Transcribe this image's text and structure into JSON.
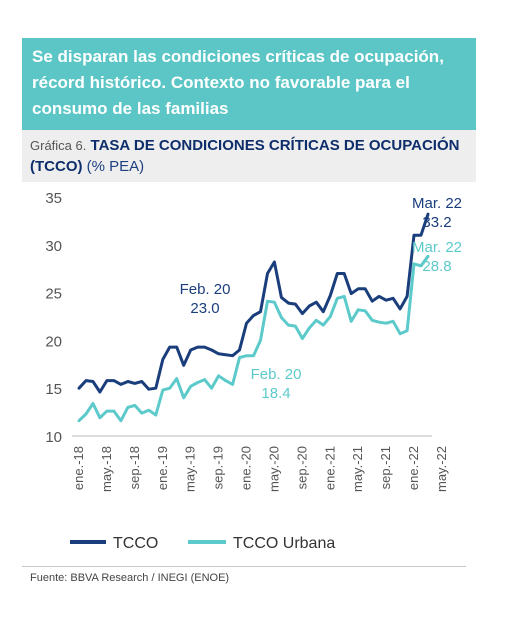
{
  "banner": {
    "title": "Se disparan las condiciones críticas de ocupación, récord histórico. Contexto no favorable para el consumo de las familias"
  },
  "subhead": {
    "prefix": "Gráfica 6.",
    "bold": "TASA DE CONDICIONES CRÍTICAS DE OCUPACIÓN (TCCO)",
    "unit": "(% PEA)"
  },
  "source": "Fuente: BBVA Research / INEGI (ENOE)",
  "colors": {
    "tcco": "#1a3d7c",
    "urbana": "#5ccaca",
    "banner": "#5cc6c6"
  },
  "chart_data": {
    "type": "line",
    "ylim": [
      10,
      35
    ],
    "yticks": [
      10,
      15,
      20,
      25,
      30,
      35
    ],
    "xtick_labels": [
      "ene.-18",
      "may.-18",
      "sep.-18",
      "ene.-19",
      "may.-19",
      "sep.-19",
      "ene.-20",
      "may.-20",
      "sep.-20",
      "ene.-21",
      "may.-21",
      "sep.-21",
      "ene.-22",
      "may.-22"
    ],
    "grid": false,
    "legend_position": "bottom",
    "series": [
      {
        "name": "TCCO",
        "values": [
          15.0,
          15.8,
          15.7,
          14.6,
          15.8,
          15.8,
          15.4,
          15.7,
          15.5,
          15.7,
          14.9,
          15.0,
          18.0,
          19.3,
          19.3,
          17.4,
          19.0,
          19.3,
          19.3,
          19.0,
          18.6,
          18.5,
          18.4,
          19.0,
          21.8,
          22.6,
          23.0,
          27.0,
          28.2,
          24.5,
          23.9,
          23.8,
          22.8,
          23.6,
          24.0,
          23.0,
          24.7,
          27.0,
          27.0,
          24.9,
          25.4,
          25.4,
          24.1,
          24.6,
          24.2,
          24.4,
          23.3,
          24.6,
          31.0,
          31.0,
          33.2
        ]
      },
      {
        "name": "TCCO Urbana",
        "values": [
          11.6,
          12.3,
          13.4,
          11.9,
          12.6,
          12.6,
          11.6,
          13.0,
          13.2,
          12.4,
          12.7,
          12.2,
          14.8,
          15.0,
          16.0,
          14.0,
          15.2,
          15.6,
          15.9,
          15.0,
          16.3,
          15.8,
          15.4,
          18.2,
          18.4,
          18.4,
          20.0,
          24.1,
          24.0,
          22.4,
          21.6,
          21.5,
          20.2,
          21.3,
          22.1,
          21.6,
          22.5,
          24.4,
          24.6,
          22.0,
          23.2,
          23.1,
          22.1,
          21.9,
          21.8,
          22.0,
          20.7,
          21.0,
          28.0,
          27.8,
          28.8
        ]
      }
    ],
    "annotations": [
      {
        "label": "Feb. 20",
        "value": "23.0",
        "series": "TCCO"
      },
      {
        "label": "Mar. 22",
        "value": "33.2",
        "series": "TCCO"
      },
      {
        "label": "Feb. 20",
        "value": "18.4",
        "series": "TCCO Urbana"
      },
      {
        "label": "Mar. 22",
        "value": "28.8",
        "series": "TCCO Urbana"
      }
    ]
  }
}
